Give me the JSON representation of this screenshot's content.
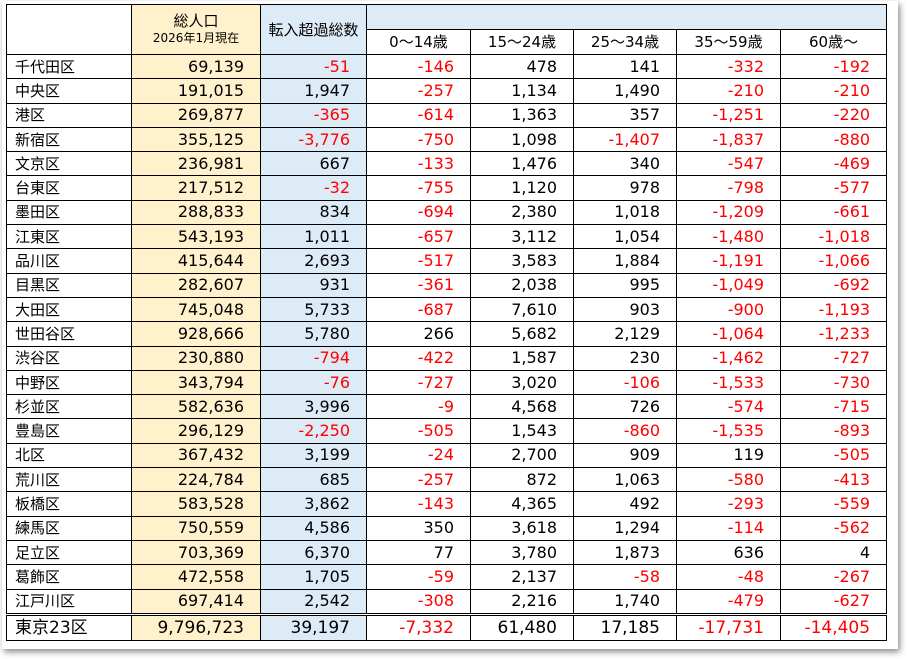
{
  "header": {
    "population": "総人口",
    "population_date": "2026年1月現在",
    "net": "転入超過総数",
    "age_groups": [
      "0～14歳",
      "15～24歳",
      "25～34歳",
      "35～59歳",
      "60歳～"
    ]
  },
  "table": {
    "rows": [
      [
        "千代田区",
        "69,139",
        "-51",
        "-146",
        "478",
        "141",
        "-332",
        "-192"
      ],
      [
        "中央区",
        "191,015",
        "1,947",
        "-257",
        "1,134",
        "1,490",
        "-210",
        "-210"
      ],
      [
        "港区",
        "269,877",
        "-365",
        "-614",
        "1,363",
        "357",
        "-1,251",
        "-220"
      ],
      [
        "新宿区",
        "355,125",
        "-3,776",
        "-750",
        "1,098",
        "-1,407",
        "-1,837",
        "-880"
      ],
      [
        "文京区",
        "236,981",
        "667",
        "-133",
        "1,476",
        "340",
        "-547",
        "-469"
      ],
      [
        "台東区",
        "217,512",
        "-32",
        "-755",
        "1,120",
        "978",
        "-798",
        "-577"
      ],
      [
        "墨田区",
        "288,833",
        "834",
        "-694",
        "2,380",
        "1,018",
        "-1,209",
        "-661"
      ],
      [
        "江東区",
        "543,193",
        "1,011",
        "-657",
        "3,112",
        "1,054",
        "-1,480",
        "-1,018"
      ],
      [
        "品川区",
        "415,644",
        "2,693",
        "-517",
        "3,583",
        "1,884",
        "-1,191",
        "-1,066"
      ],
      [
        "目黒区",
        "282,607",
        "931",
        "-361",
        "2,038",
        "995",
        "-1,049",
        "-692"
      ],
      [
        "大田区",
        "745,048",
        "5,733",
        "-687",
        "7,610",
        "903",
        "-900",
        "-1,193"
      ],
      [
        "世田谷区",
        "928,666",
        "5,780",
        "266",
        "5,682",
        "2,129",
        "-1,064",
        "-1,233"
      ],
      [
        "渋谷区",
        "230,880",
        "-794",
        "-422",
        "1,587",
        "230",
        "-1,462",
        "-727"
      ],
      [
        "中野区",
        "343,794",
        "-76",
        "-727",
        "3,020",
        "-106",
        "-1,533",
        "-730"
      ],
      [
        "杉並区",
        "582,636",
        "3,996",
        "-9",
        "4,568",
        "726",
        "-574",
        "-715"
      ],
      [
        "豊島区",
        "296,129",
        "-2,250",
        "-505",
        "1,543",
        "-860",
        "-1,535",
        "-893"
      ],
      [
        "北区",
        "367,432",
        "3,199",
        "-24",
        "2,700",
        "909",
        "119",
        "-505"
      ],
      [
        "荒川区",
        "224,784",
        "685",
        "-257",
        "872",
        "1,063",
        "-580",
        "-413"
      ],
      [
        "板橋区",
        "583,528",
        "3,862",
        "-143",
        "4,365",
        "492",
        "-293",
        "-559"
      ],
      [
        "練馬区",
        "750,559",
        "4,586",
        "350",
        "3,618",
        "1,294",
        "-114",
        "-562"
      ],
      [
        "足立区",
        "703,369",
        "6,370",
        "77",
        "3,780",
        "1,873",
        "636",
        "4"
      ],
      [
        "葛飾区",
        "472,558",
        "1,705",
        "-59",
        "2,137",
        "-58",
        "-48",
        "-267"
      ],
      [
        "江戸川区",
        "697,414",
        "2,542",
        "-308",
        "2,216",
        "1,740",
        "-479",
        "-627"
      ]
    ],
    "total": [
      "東京23区",
      "9,796,723",
      "39,197",
      "-7,332",
      "61,480",
      "17,185",
      "-17,731",
      "-14,405"
    ]
  }
}
